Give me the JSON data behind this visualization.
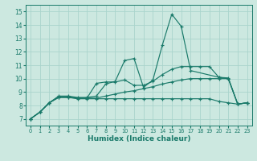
{
  "xlabel": "Humidex (Indice chaleur)",
  "xlim": [
    -0.5,
    23.5
  ],
  "ylim": [
    6.5,
    15.5
  ],
  "yticks": [
    7,
    8,
    9,
    10,
    11,
    12,
    13,
    14,
    15
  ],
  "xticks": [
    0,
    1,
    2,
    3,
    4,
    5,
    6,
    7,
    8,
    9,
    10,
    11,
    12,
    13,
    14,
    15,
    16,
    17,
    18,
    19,
    20,
    21,
    22,
    23
  ],
  "bg_color": "#cce8e0",
  "grid_color": "#aad4cc",
  "line_color": "#1a7a6a",
  "lines": [
    {
      "x": [
        0,
        1,
        2,
        3,
        4,
        5,
        6,
        7,
        8,
        9,
        10,
        11,
        12,
        13,
        14,
        15,
        16,
        17,
        20,
        21,
        22,
        23
      ],
      "y": [
        7.0,
        7.5,
        8.2,
        8.7,
        8.7,
        8.6,
        8.6,
        8.7,
        9.6,
        9.8,
        11.35,
        11.5,
        9.35,
        9.9,
        12.5,
        14.8,
        13.9,
        10.6,
        10.1,
        10.05,
        8.1,
        8.2
      ]
    },
    {
      "x": [
        0,
        1,
        2,
        3,
        4,
        5,
        6,
        7,
        8,
        9,
        10,
        11,
        12,
        13,
        14,
        15,
        16,
        17,
        18,
        19,
        20,
        21,
        22,
        23
      ],
      "y": [
        7.0,
        7.5,
        8.2,
        8.65,
        8.65,
        8.55,
        8.55,
        9.65,
        9.75,
        9.75,
        9.9,
        9.5,
        9.5,
        9.8,
        10.3,
        10.7,
        10.9,
        10.9,
        10.9,
        10.9,
        10.1,
        10.0,
        8.1,
        8.2
      ]
    },
    {
      "x": [
        0,
        1,
        2,
        3,
        4,
        5,
        6,
        7,
        8,
        9,
        10,
        11,
        12,
        13,
        14,
        15,
        16,
        17,
        18,
        19,
        20,
        21,
        22,
        23
      ],
      "y": [
        7.0,
        7.5,
        8.2,
        8.6,
        8.6,
        8.5,
        8.5,
        8.5,
        8.5,
        8.5,
        8.5,
        8.5,
        8.5,
        8.5,
        8.5,
        8.5,
        8.5,
        8.5,
        8.5,
        8.5,
        8.3,
        8.2,
        8.1,
        8.2
      ]
    },
    {
      "x": [
        0,
        1,
        2,
        3,
        4,
        5,
        6,
        7,
        8,
        9,
        10,
        11,
        12,
        13,
        14,
        15,
        16,
        17,
        18,
        19,
        20,
        21,
        22,
        23
      ],
      "y": [
        7.0,
        7.5,
        8.2,
        8.6,
        8.6,
        8.55,
        8.55,
        8.55,
        8.7,
        8.85,
        9.0,
        9.1,
        9.25,
        9.4,
        9.6,
        9.75,
        9.9,
        10.0,
        10.0,
        10.0,
        10.0,
        10.0,
        8.1,
        8.2
      ]
    }
  ]
}
